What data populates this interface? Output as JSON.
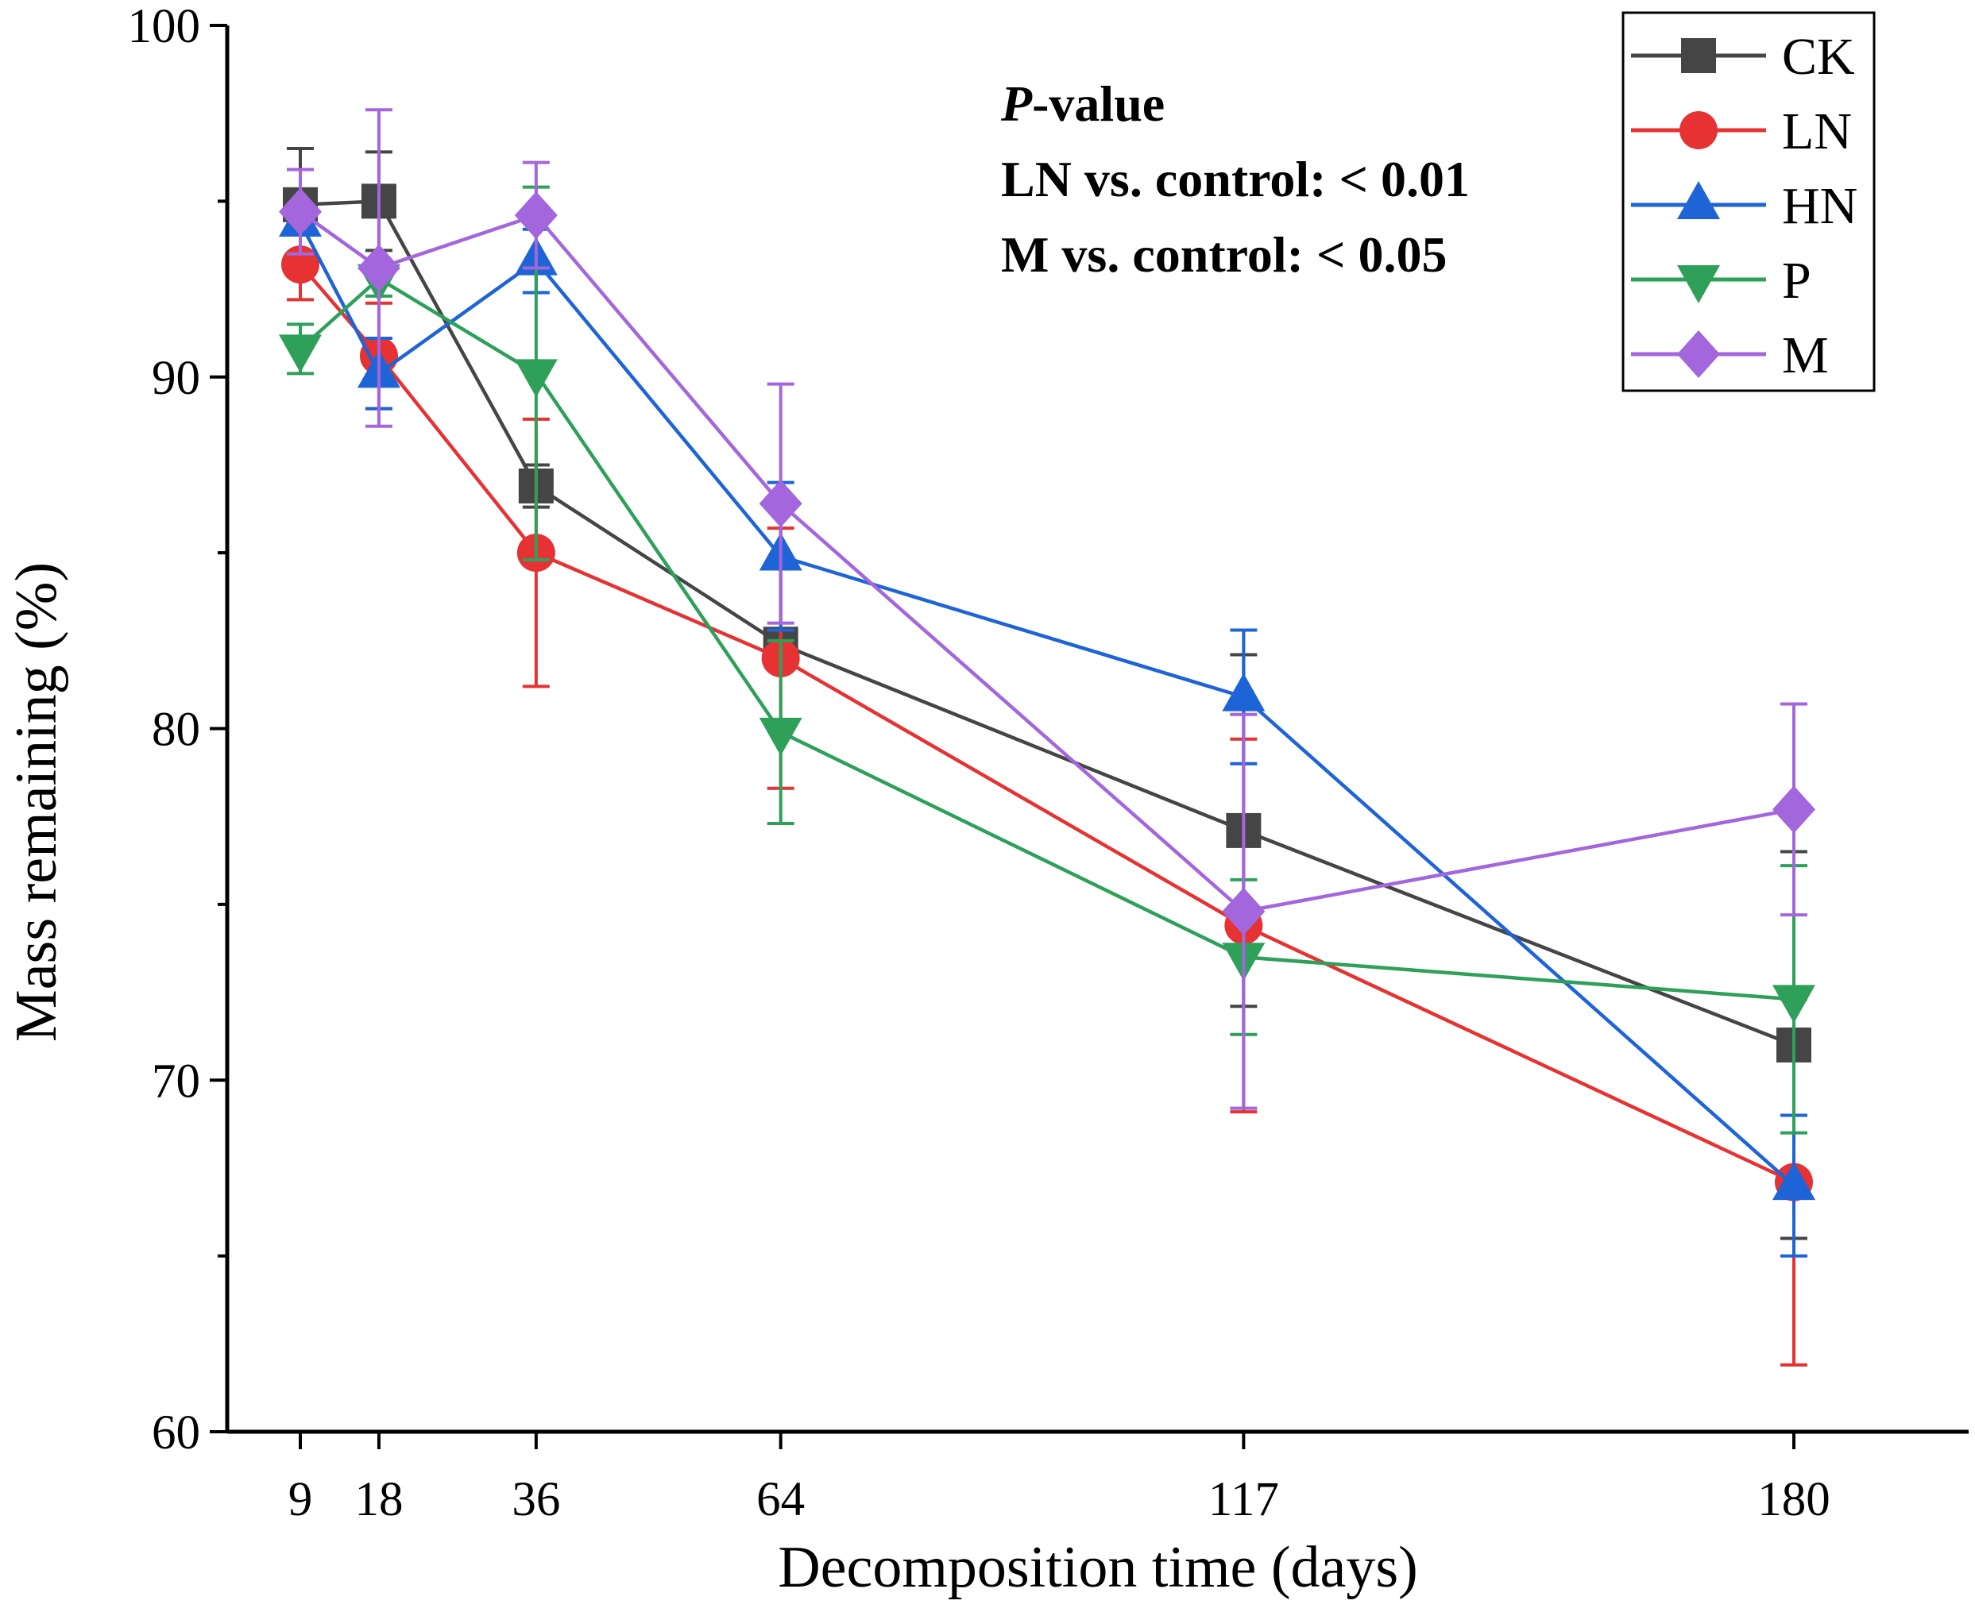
{
  "chart_data": {
    "type": "line",
    "title": "",
    "xlabel": "Decomposition time (days)",
    "ylabel": "Mass remaining (%)",
    "x": [
      9,
      18,
      36,
      64,
      117,
      180
    ],
    "x_tick_labels": [
      "9",
      "18",
      "36",
      "64",
      "117",
      "180"
    ],
    "xlim": [
      0,
      200
    ],
    "ylim": [
      60,
      100
    ],
    "y_ticks": [
      60,
      70,
      80,
      90,
      100
    ],
    "y_tick_labels": [
      "60",
      "70",
      "80",
      "90",
      "100"
    ],
    "y_minor_ticks": [
      65,
      75,
      85,
      95
    ],
    "grid": false,
    "legend_position": "top-right",
    "series": [
      {
        "name": "CK",
        "color": "#454545",
        "marker": "square",
        "values": [
          94.9,
          95.0,
          86.9,
          82.4,
          77.1,
          71.0
        ],
        "errors": [
          1.6,
          1.4,
          0.6,
          0.4,
          5.0,
          5.5
        ]
      },
      {
        "name": "LN",
        "color": "#e63232",
        "marker": "circle",
        "values": [
          93.2,
          90.6,
          85.0,
          82.0,
          74.4,
          67.1
        ],
        "errors": [
          1.0,
          1.5,
          3.8,
          3.7,
          5.3,
          5.2
        ]
      },
      {
        "name": "HN",
        "color": "#1e64d7",
        "marker": "triangle-up",
        "values": [
          94.4,
          90.1,
          93.3,
          84.9,
          80.9,
          67.0
        ],
        "errors": [
          0.3,
          1.0,
          0.9,
          2.1,
          1.9,
          2.0
        ]
      },
      {
        "name": "P",
        "color": "#2ea05a",
        "marker": "triangle-down",
        "values": [
          90.8,
          92.8,
          90.1,
          79.9,
          73.5,
          72.3
        ],
        "errors": [
          0.7,
          0.5,
          5.3,
          2.6,
          2.2,
          3.8
        ]
      },
      {
        "name": "M",
        "color": "#a366dc",
        "marker": "diamond",
        "values": [
          94.7,
          93.1,
          94.6,
          86.4,
          74.8,
          77.7
        ],
        "errors": [
          1.2,
          4.5,
          1.5,
          3.4,
          5.6,
          3.0
        ]
      }
    ],
    "annotation": {
      "title_italic": "P",
      "title_rest": "-value",
      "lines": [
        "LN vs. control: < 0.01",
        "M vs. control: < 0.05"
      ]
    }
  }
}
